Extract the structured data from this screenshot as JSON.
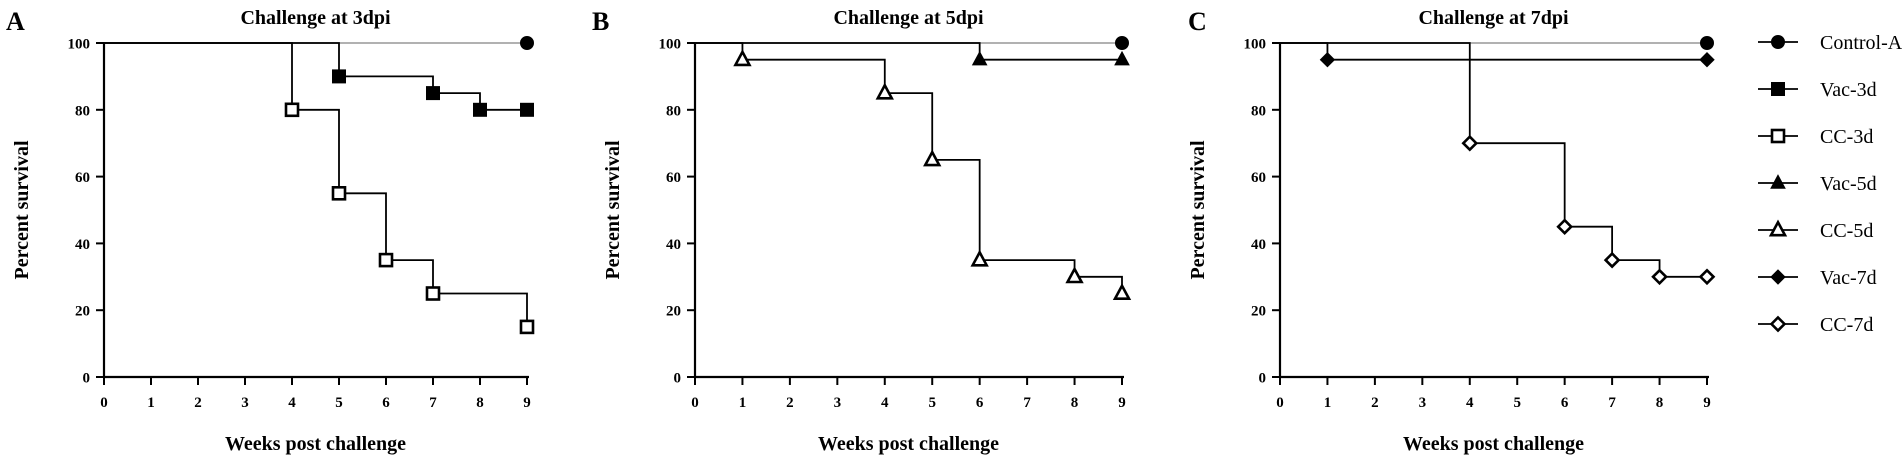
{
  "chart_data": [
    {
      "type": "line",
      "step": true,
      "panel": "A",
      "title": "Challenge at 3dpi",
      "xlabel": "Weeks post challenge",
      "ylabel": "Percent survival",
      "xlim": [
        0,
        9
      ],
      "ylim": [
        0,
        100
      ],
      "xticks": [
        "0",
        "1",
        "2",
        "3",
        "4",
        "5",
        "6",
        "7",
        "8",
        "9"
      ],
      "yticks": [
        "0",
        "20",
        "40",
        "60",
        "80",
        "100"
      ],
      "series": [
        {
          "name": "Control-A",
          "marker": "circle",
          "filled": true,
          "line_color": "#a6a6a6",
          "line": [
            [
              0,
              100
            ],
            [
              9,
              100
            ]
          ],
          "points": [
            [
              9,
              100
            ]
          ]
        },
        {
          "name": "Vac-3d",
          "marker": "square",
          "filled": true,
          "line_color": "#000000",
          "line": [
            [
              0,
              100
            ],
            [
              5,
              100
            ],
            [
              5,
              90
            ],
            [
              7,
              90
            ],
            [
              7,
              85
            ],
            [
              8,
              85
            ],
            [
              8,
              80
            ],
            [
              9,
              80
            ]
          ],
          "points": [
            [
              5,
              90
            ],
            [
              7,
              85
            ],
            [
              8,
              80
            ],
            [
              9,
              80
            ]
          ]
        },
        {
          "name": "CC-3d",
          "marker": "square",
          "filled": false,
          "line_color": "#000000",
          "line": [
            [
              0,
              100
            ],
            [
              4,
              100
            ],
            [
              4,
              80
            ],
            [
              5,
              80
            ],
            [
              5,
              55
            ],
            [
              6,
              55
            ],
            [
              6,
              35
            ],
            [
              7,
              35
            ],
            [
              7,
              25
            ],
            [
              9,
              25
            ],
            [
              9,
              15
            ]
          ],
          "points": [
            [
              4,
              80
            ],
            [
              5,
              55
            ],
            [
              6,
              35
            ],
            [
              7,
              25
            ],
            [
              9,
              15
            ]
          ]
        }
      ]
    },
    {
      "type": "line",
      "step": true,
      "panel": "B",
      "title": "Challenge at 5dpi",
      "xlabel": "Weeks post challenge",
      "ylabel": "Percent survival",
      "xlim": [
        0,
        9
      ],
      "ylim": [
        0,
        100
      ],
      "xticks": [
        "0",
        "1",
        "2",
        "3",
        "4",
        "5",
        "6",
        "7",
        "8",
        "9"
      ],
      "yticks": [
        "0",
        "20",
        "40",
        "60",
        "80",
        "100"
      ],
      "series": [
        {
          "name": "Control-A",
          "marker": "circle",
          "filled": true,
          "line_color": "#a6a6a6",
          "line": [
            [
              0,
              100
            ],
            [
              9,
              100
            ]
          ],
          "points": [
            [
              9,
              100
            ]
          ]
        },
        {
          "name": "Vac-5d",
          "marker": "triangle",
          "filled": true,
          "line_color": "#000000",
          "line": [
            [
              0,
              100
            ],
            [
              6,
              100
            ],
            [
              6,
              95
            ],
            [
              9,
              95
            ]
          ],
          "points": [
            [
              6,
              95
            ],
            [
              9,
              95
            ]
          ]
        },
        {
          "name": "CC-5d",
          "marker": "triangle",
          "filled": false,
          "line_color": "#000000",
          "line": [
            [
              0,
              100
            ],
            [
              1,
              100
            ],
            [
              1,
              95
            ],
            [
              4,
              95
            ],
            [
              4,
              85
            ],
            [
              5,
              85
            ],
            [
              5,
              65
            ],
            [
              6,
              65
            ],
            [
              6,
              35
            ],
            [
              8,
              35
            ],
            [
              8,
              30
            ],
            [
              9,
              30
            ],
            [
              9,
              25
            ]
          ],
          "points": [
            [
              1,
              95
            ],
            [
              4,
              85
            ],
            [
              5,
              65
            ],
            [
              6,
              35
            ],
            [
              8,
              30
            ],
            [
              9,
              25
            ]
          ]
        }
      ]
    },
    {
      "type": "line",
      "step": true,
      "panel": "C",
      "title": "Challenge at 7dpi",
      "xlabel": "Weeks post challenge",
      "ylabel": "Percent survival",
      "xlim": [
        0,
        9
      ],
      "ylim": [
        0,
        100
      ],
      "xticks": [
        "0",
        "1",
        "2",
        "3",
        "4",
        "5",
        "6",
        "7",
        "8",
        "9"
      ],
      "yticks": [
        "0",
        "20",
        "40",
        "60",
        "80",
        "100"
      ],
      "series": [
        {
          "name": "Control-A",
          "marker": "circle",
          "filled": true,
          "line_color": "#a6a6a6",
          "line": [
            [
              0,
              100
            ],
            [
              9,
              100
            ]
          ],
          "points": [
            [
              9,
              100
            ]
          ]
        },
        {
          "name": "Vac-7d",
          "marker": "diamond",
          "filled": true,
          "line_color": "#000000",
          "line": [
            [
              0,
              100
            ],
            [
              1,
              100
            ],
            [
              1,
              95
            ],
            [
              9,
              95
            ]
          ],
          "points": [
            [
              1,
              95
            ],
            [
              9,
              95
            ]
          ]
        },
        {
          "name": "CC-7d",
          "marker": "diamond",
          "filled": false,
          "line_color": "#000000",
          "line": [
            [
              0,
              100
            ],
            [
              4,
              100
            ],
            [
              4,
              70
            ],
            [
              6,
              70
            ],
            [
              6,
              45
            ],
            [
              7,
              45
            ],
            [
              7,
              35
            ],
            [
              8,
              35
            ],
            [
              8,
              30
            ],
            [
              9,
              30
            ]
          ],
          "points": [
            [
              4,
              70
            ],
            [
              6,
              45
            ],
            [
              7,
              35
            ],
            [
              8,
              30
            ],
            [
              9,
              30
            ]
          ]
        }
      ]
    }
  ],
  "legend": {
    "placement": "right",
    "entries": [
      {
        "name": "Control-A",
        "marker": "circle",
        "filled": true
      },
      {
        "name": "Vac-3d",
        "marker": "square",
        "filled": true
      },
      {
        "name": "CC-3d",
        "marker": "square",
        "filled": false
      },
      {
        "name": "Vac-5d",
        "marker": "triangle",
        "filled": true
      },
      {
        "name": "CC-5d",
        "marker": "triangle",
        "filled": false
      },
      {
        "name": "Vac-7d",
        "marker": "diamond",
        "filled": true
      },
      {
        "name": "CC-7d",
        "marker": "diamond",
        "filled": false
      }
    ]
  }
}
